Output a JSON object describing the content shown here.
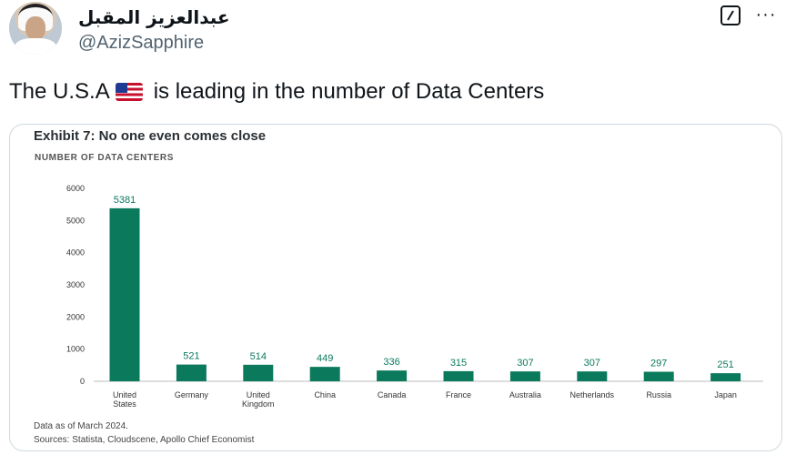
{
  "tweet": {
    "author_name": "عبدالعزيز المقبل",
    "author_handle": "@AzizSapphire",
    "text_before_flag": "The U.S.A",
    "text_after_flag": "is leading in the number of Data Centers",
    "icons": [
      "avatar",
      "grok-icon",
      "more-icon",
      "us-flag-icon"
    ]
  },
  "chart_card": {
    "notes": [
      "Data as of March 2024.",
      "Sources: Statista, Cloudscene, Apollo Chief Economist"
    ]
  },
  "chart_data": {
    "type": "bar",
    "title": "Exhibit 7: No one even comes close",
    "ylabel": "NUMBER OF DATA CENTERS",
    "xlabel": "",
    "categories": [
      "United States",
      "Germany",
      "United Kingdom",
      "China",
      "Canada",
      "France",
      "Australia",
      "Netherlands",
      "Russia",
      "Japan"
    ],
    "values": [
      5381,
      521,
      514,
      449,
      336,
      315,
      307,
      307,
      297,
      251
    ],
    "yticks": [
      "0",
      "1000",
      "2000",
      "3000",
      "4000",
      "5000",
      "6000"
    ],
    "ylim": [
      0,
      6000
    ],
    "grid": false,
    "bar_color": "#0b7a5c",
    "label_color": "#0b7a5c"
  }
}
